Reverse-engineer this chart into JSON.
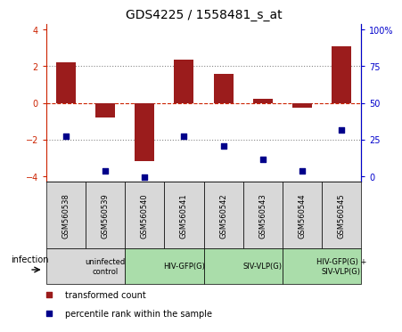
{
  "title": "GDS4225 / 1558481_s_at",
  "samples": [
    "GSM560538",
    "GSM560539",
    "GSM560540",
    "GSM560541",
    "GSM560542",
    "GSM560543",
    "GSM560544",
    "GSM560545"
  ],
  "red_bars": [
    2.2,
    -0.8,
    -3.2,
    2.35,
    1.6,
    0.2,
    -0.25,
    3.1
  ],
  "blue_squares_left_axis": [
    -1.8,
    -3.7,
    -4.05,
    -1.8,
    -2.35,
    -3.1,
    -3.7,
    -1.5
  ],
  "ylim": [
    -4.3,
    4.3
  ],
  "yticks_left": [
    -4,
    -2,
    0,
    2,
    4
  ],
  "yticks_right": [
    0,
    25,
    50,
    75,
    100
  ],
  "right_axis_labels": [
    "0",
    "25",
    "50",
    "75",
    "100%"
  ],
  "bar_color": "#9B1C1C",
  "square_color": "#00008B",
  "dashed_line_color": "#CC2200",
  "dotted_line_color": "#888888",
  "groups": [
    {
      "label": "uninfected\ncontrol",
      "start": 0,
      "end": 2,
      "color": "#d8d8d8"
    },
    {
      "label": "HIV-GFP(G)",
      "start": 2,
      "end": 4,
      "color": "#aaddaa"
    },
    {
      "label": "SIV-VLP(G)",
      "start": 4,
      "end": 6,
      "color": "#aaddaa"
    },
    {
      "label": "HIV-GFP(G) +\nSIV-VLP(G)",
      "start": 6,
      "end": 8,
      "color": "#aaddaa"
    }
  ],
  "infection_label": "infection",
  "legend_red": "transformed count",
  "legend_blue": "percentile rank within the sample",
  "sample_box_color": "#d8d8d8",
  "title_fontsize": 10,
  "tick_fontsize": 7,
  "label_fontsize": 6,
  "group_fontsize": 6,
  "legend_fontsize": 7
}
